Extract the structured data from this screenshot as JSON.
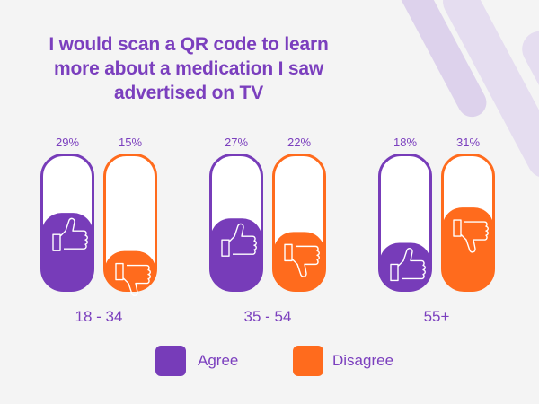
{
  "colors": {
    "agree": "#773cb9",
    "disagree": "#ff6b1d",
    "text": "#7b3fbe",
    "background": "#f4f4f4"
  },
  "chart_data": {
    "type": "bar",
    "title": "I would scan a QR code to learn more about a medication I saw advertised on TV",
    "categories": [
      "18 - 34",
      "35 - 54",
      "55+"
    ],
    "series": [
      {
        "name": "Agree",
        "values": [
          29,
          27,
          18
        ],
        "icon": "thumbs-up-icon"
      },
      {
        "name": "Disagree",
        "values": [
          15,
          22,
          31
        ],
        "icon": "thumbs-down-icon"
      }
    ],
    "value_labels": [
      [
        "29%",
        "15%"
      ],
      [
        "27%",
        "22%"
      ],
      [
        "18%",
        "31%"
      ]
    ],
    "xlabel": "",
    "ylabel": "",
    "ylim": [
      0,
      60
    ],
    "grid": false,
    "legend": {
      "position": "bottom",
      "entries": [
        "Agree",
        "Disagree"
      ]
    }
  }
}
